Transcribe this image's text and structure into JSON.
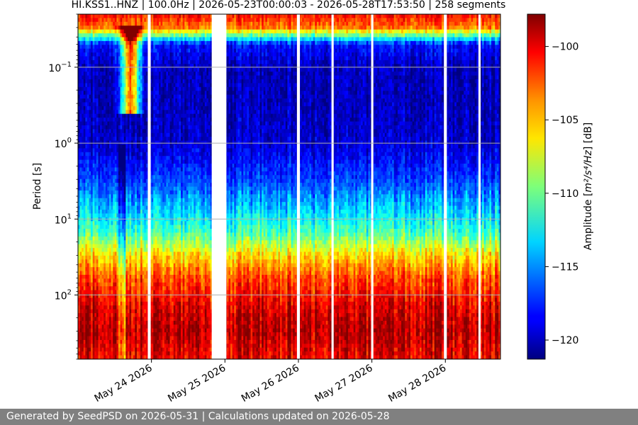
{
  "chart_data": {
    "type": "heatmap",
    "title": "HI.KSS1..HNZ | 100.0Hz | 2026-05-23T00:00:03 - 2026-05-28T17:53:50 | 258 segments",
    "xlabel": "",
    "ylabel": "Period [s]",
    "x_tick_labels": [
      "May 24 2026",
      "May 25 2026",
      "May 26 2026",
      "May 27 2026",
      "May 28 2026"
    ],
    "x_ticks_day": [
      1,
      2,
      3,
      4,
      5
    ],
    "x_range_day": [
      0,
      5.75
    ],
    "y_scale": "log",
    "y_range": [
      0.02,
      700
    ],
    "y_ticks": [
      {
        "value": 0.1,
        "base": "10",
        "exp": "−1"
      },
      {
        "value": 1,
        "base": "10",
        "exp": "0"
      },
      {
        "value": 10,
        "base": "10",
        "exp": "1"
      },
      {
        "value": 100,
        "base": "10",
        "exp": "2"
      }
    ],
    "y_inverted": true,
    "grid": "horizontal",
    "colormap": "jet",
    "colorbar": {
      "label_prefix": "Amplitude [",
      "label_units": "m²/s⁴/Hz",
      "label_suffix": "] [dB]",
      "range": [
        -121.3,
        -97.8
      ],
      "ticks": [
        -100,
        -105,
        -110,
        -115,
        -120
      ]
    },
    "gaps_day": [
      [
        0.95,
        0.99
      ],
      [
        1.82,
        2.02
      ],
      [
        2.98,
        3.02
      ],
      [
        3.45,
        3.48
      ],
      [
        3.99,
        4.02
      ],
      [
        4.98,
        5.02
      ],
      [
        5.45,
        5.48
      ]
    ],
    "columns": 230,
    "period_profile": [
      {
        "period": 0.02,
        "db": -101
      },
      {
        "period": 0.03,
        "db": -103.5
      },
      {
        "period": 0.05,
        "db": -118
      },
      {
        "period": 0.1,
        "db": -120
      },
      {
        "period": 0.3,
        "db": -120
      },
      {
        "period": 1,
        "db": -119.5
      },
      {
        "period": 3,
        "db": -117
      },
      {
        "period": 7,
        "db": -114
      },
      {
        "period": 15,
        "db": -111
      },
      {
        "period": 30,
        "db": -106
      },
      {
        "period": 60,
        "db": -102.5
      },
      {
        "period": 150,
        "db": -100
      },
      {
        "period": 300,
        "db": -99
      },
      {
        "period": 700,
        "db": -100.5
      }
    ]
  },
  "footer": {
    "text": "Generated by SeedPSD on 2026-05-31 | Calculations updated on 2026-05-28"
  }
}
